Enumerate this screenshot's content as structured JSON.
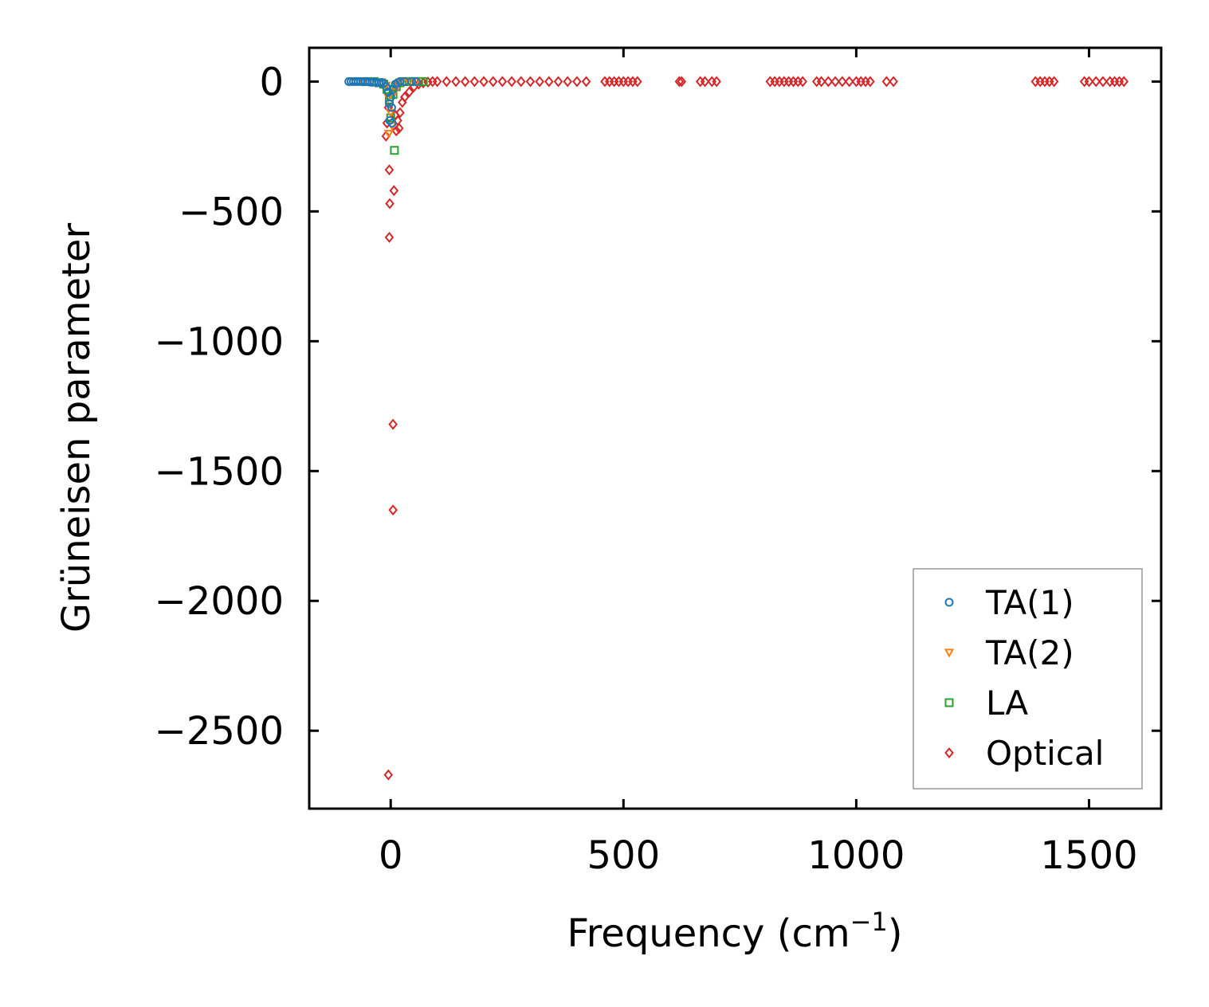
{
  "chart_data": {
    "type": "scatter",
    "xlabel": "Frequency (cm",
    "xlabel_superscript": "−1",
    "xlabel_suffix": ")",
    "ylabel": "Grüneisen parameter",
    "xlim": [
      -175,
      1655
    ],
    "ylim": [
      -2800,
      130
    ],
    "xticks": [
      0,
      500,
      1000,
      1500
    ],
    "xtick_labels": [
      "0",
      "500",
      "1000",
      "1500"
    ],
    "yticks": [
      0,
      -500,
      -1000,
      -1500,
      -2000,
      -2500
    ],
    "ytick_labels": [
      "0",
      "−500",
      "−1000",
      "−1500",
      "−2000",
      "−2500"
    ],
    "legend_position": "lower-right",
    "series": [
      {
        "name": "TA(1)",
        "marker": "circle",
        "color": "#1f77b4",
        "points": [
          [
            -90,
            0
          ],
          [
            -85,
            0
          ],
          [
            -80,
            0
          ],
          [
            -75,
            0
          ],
          [
            -70,
            0
          ],
          [
            -65,
            0
          ],
          [
            -60,
            0
          ],
          [
            -55,
            0
          ],
          [
            -50,
            0
          ],
          [
            -45,
            -2
          ],
          [
            -40,
            -3
          ],
          [
            -35,
            -1
          ],
          [
            -30,
            -4
          ],
          [
            -25,
            -5
          ],
          [
            -20,
            -3
          ],
          [
            -15,
            -6
          ],
          [
            -10,
            -20
          ],
          [
            -5,
            -40
          ],
          [
            0,
            -60
          ],
          [
            -3,
            -85
          ],
          [
            2,
            -100
          ],
          [
            -2,
            -150
          ],
          [
            3,
            -160
          ],
          [
            5,
            -30
          ],
          [
            10,
            -10
          ],
          [
            15,
            -5
          ],
          [
            20,
            0
          ],
          [
            30,
            0
          ],
          [
            45,
            0
          ],
          [
            55,
            0
          ]
        ]
      },
      {
        "name": "TA(2)",
        "marker": "triangle-down",
        "color": "#ff7f0e",
        "points": [
          [
            -60,
            0
          ],
          [
            -40,
            0
          ],
          [
            -20,
            -2
          ],
          [
            -10,
            -15
          ],
          [
            -5,
            -60
          ],
          [
            0,
            -120
          ],
          [
            -4,
            -200
          ],
          [
            3,
            -170
          ],
          [
            8,
            -40
          ],
          [
            15,
            -10
          ],
          [
            25,
            0
          ],
          [
            40,
            0
          ],
          [
            55,
            0
          ]
        ]
      },
      {
        "name": "LA",
        "marker": "square",
        "color": "#2ca02c",
        "points": [
          [
            -50,
            0
          ],
          [
            -35,
            0
          ],
          [
            -25,
            -5
          ],
          [
            -15,
            -10
          ],
          [
            -8,
            -30
          ],
          [
            -3,
            -70
          ],
          [
            0,
            -140
          ],
          [
            8,
            -265
          ],
          [
            5,
            -50
          ],
          [
            12,
            -20
          ],
          [
            20,
            -5
          ],
          [
            30,
            0
          ],
          [
            40,
            0
          ],
          [
            50,
            0
          ],
          [
            60,
            0
          ],
          [
            70,
            0
          ]
        ]
      },
      {
        "name": "Optical",
        "marker": "diamond",
        "color": "#d62728",
        "points": [
          [
            -5,
            -2670
          ],
          [
            5,
            -1650
          ],
          [
            5,
            -1320
          ],
          [
            -3,
            -600
          ],
          [
            -2,
            -470
          ],
          [
            7,
            -420
          ],
          [
            -3,
            -340
          ],
          [
            -10,
            -210
          ],
          [
            12,
            -190
          ],
          [
            18,
            -180
          ],
          [
            -8,
            -160
          ],
          [
            15,
            -150
          ],
          [
            10,
            -130
          ],
          [
            20,
            -120
          ],
          [
            -5,
            -100
          ],
          [
            25,
            -80
          ],
          [
            30,
            -60
          ],
          [
            40,
            -40
          ],
          [
            50,
            -20
          ],
          [
            60,
            -10
          ],
          [
            70,
            -5
          ],
          [
            80,
            -2
          ],
          [
            90,
            0
          ],
          [
            100,
            0
          ],
          [
            120,
            0
          ],
          [
            140,
            0
          ],
          [
            160,
            0
          ],
          [
            180,
            0
          ],
          [
            200,
            0
          ],
          [
            220,
            0
          ],
          [
            240,
            0
          ],
          [
            260,
            0
          ],
          [
            280,
            0
          ],
          [
            300,
            0
          ],
          [
            320,
            0
          ],
          [
            340,
            0
          ],
          [
            360,
            0
          ],
          [
            380,
            0
          ],
          [
            400,
            0
          ],
          [
            420,
            0
          ],
          [
            460,
            0
          ],
          [
            470,
            0
          ],
          [
            480,
            0
          ],
          [
            490,
            0
          ],
          [
            500,
            0
          ],
          [
            510,
            0
          ],
          [
            520,
            0
          ],
          [
            530,
            0
          ],
          [
            620,
            0
          ],
          [
            625,
            0
          ],
          [
            665,
            0
          ],
          [
            675,
            0
          ],
          [
            690,
            0
          ],
          [
            700,
            0
          ],
          [
            815,
            0
          ],
          [
            825,
            0
          ],
          [
            835,
            0
          ],
          [
            845,
            0
          ],
          [
            855,
            0
          ],
          [
            865,
            0
          ],
          [
            875,
            0
          ],
          [
            885,
            0
          ],
          [
            915,
            0
          ],
          [
            925,
            0
          ],
          [
            940,
            0
          ],
          [
            955,
            0
          ],
          [
            970,
            0
          ],
          [
            985,
            0
          ],
          [
            1000,
            0
          ],
          [
            1010,
            0
          ],
          [
            1020,
            0
          ],
          [
            1030,
            0
          ],
          [
            1065,
            0
          ],
          [
            1080,
            0
          ],
          [
            1385,
            0
          ],
          [
            1395,
            0
          ],
          [
            1405,
            0
          ],
          [
            1415,
            0
          ],
          [
            1425,
            0
          ],
          [
            1490,
            0
          ],
          [
            1500,
            0
          ],
          [
            1515,
            0
          ],
          [
            1530,
            0
          ],
          [
            1545,
            0
          ],
          [
            1555,
            0
          ],
          [
            1565,
            0
          ],
          [
            1575,
            0
          ]
        ]
      }
    ]
  },
  "colors": {
    "ta1": "#1f77b4",
    "ta2": "#ff7f0e",
    "la": "#2ca02c",
    "optical": "#d62728"
  }
}
